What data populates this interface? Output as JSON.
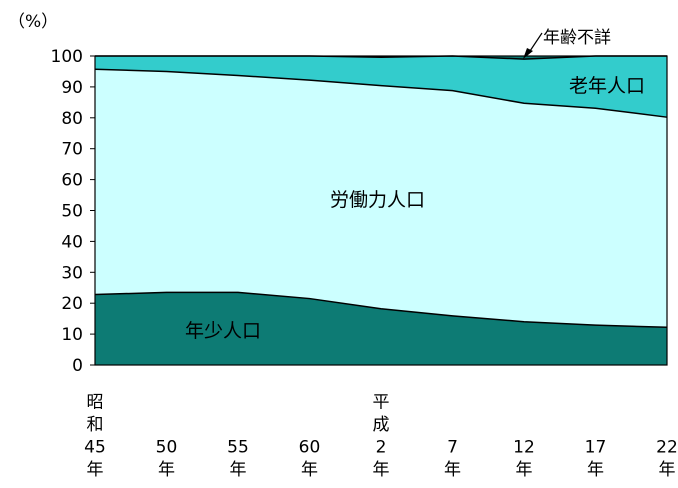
{
  "chart_data": {
    "type": "area",
    "stacked": true,
    "y_unit_label": "（%）",
    "ylim": [
      0,
      100
    ],
    "yticks": [
      0,
      10,
      20,
      30,
      40,
      50,
      60,
      70,
      80,
      90,
      100
    ],
    "x_tick_labels": [
      [
        "昭",
        "和",
        "45",
        "年"
      ],
      [
        "50",
        "年"
      ],
      [
        "55",
        "年"
      ],
      [
        "60",
        "年"
      ],
      [
        "平",
        "成",
        "2",
        "年"
      ],
      [
        "7",
        "年"
      ],
      [
        "12",
        "年"
      ],
      [
        "17",
        "年"
      ],
      [
        "22",
        "年"
      ]
    ],
    "x": [
      "昭和45年",
      "50年",
      "55年",
      "60年",
      "平成2年",
      "7年",
      "12年",
      "17年",
      "22年"
    ],
    "series": [
      {
        "name": "年少人口",
        "values": [
          22.8,
          23.5,
          23.5,
          21.5,
          18.2,
          15.9,
          14.0,
          12.9,
          12.2
        ],
        "color": "#0d7b74"
      },
      {
        "name": "労働力人口",
        "values": [
          72.9,
          71.5,
          70.2,
          70.7,
          72.2,
          72.9,
          70.7,
          70.2,
          68.0
        ],
        "color": "#ccffff"
      },
      {
        "name": "老年人口",
        "values": [
          4.3,
          5.0,
          6.3,
          7.8,
          9.2,
          11.2,
          14.3,
          16.9,
          19.8
        ],
        "color": "#33cccc"
      },
      {
        "name": "年齢不詳",
        "values": [
          0.0,
          0.0,
          0.0,
          0.0,
          0.4,
          0.0,
          1.0,
          0.0,
          0.0
        ],
        "color": "#0d7b74"
      }
    ],
    "annotation_label": "年齢不詳",
    "grid": false,
    "legend": "none"
  }
}
